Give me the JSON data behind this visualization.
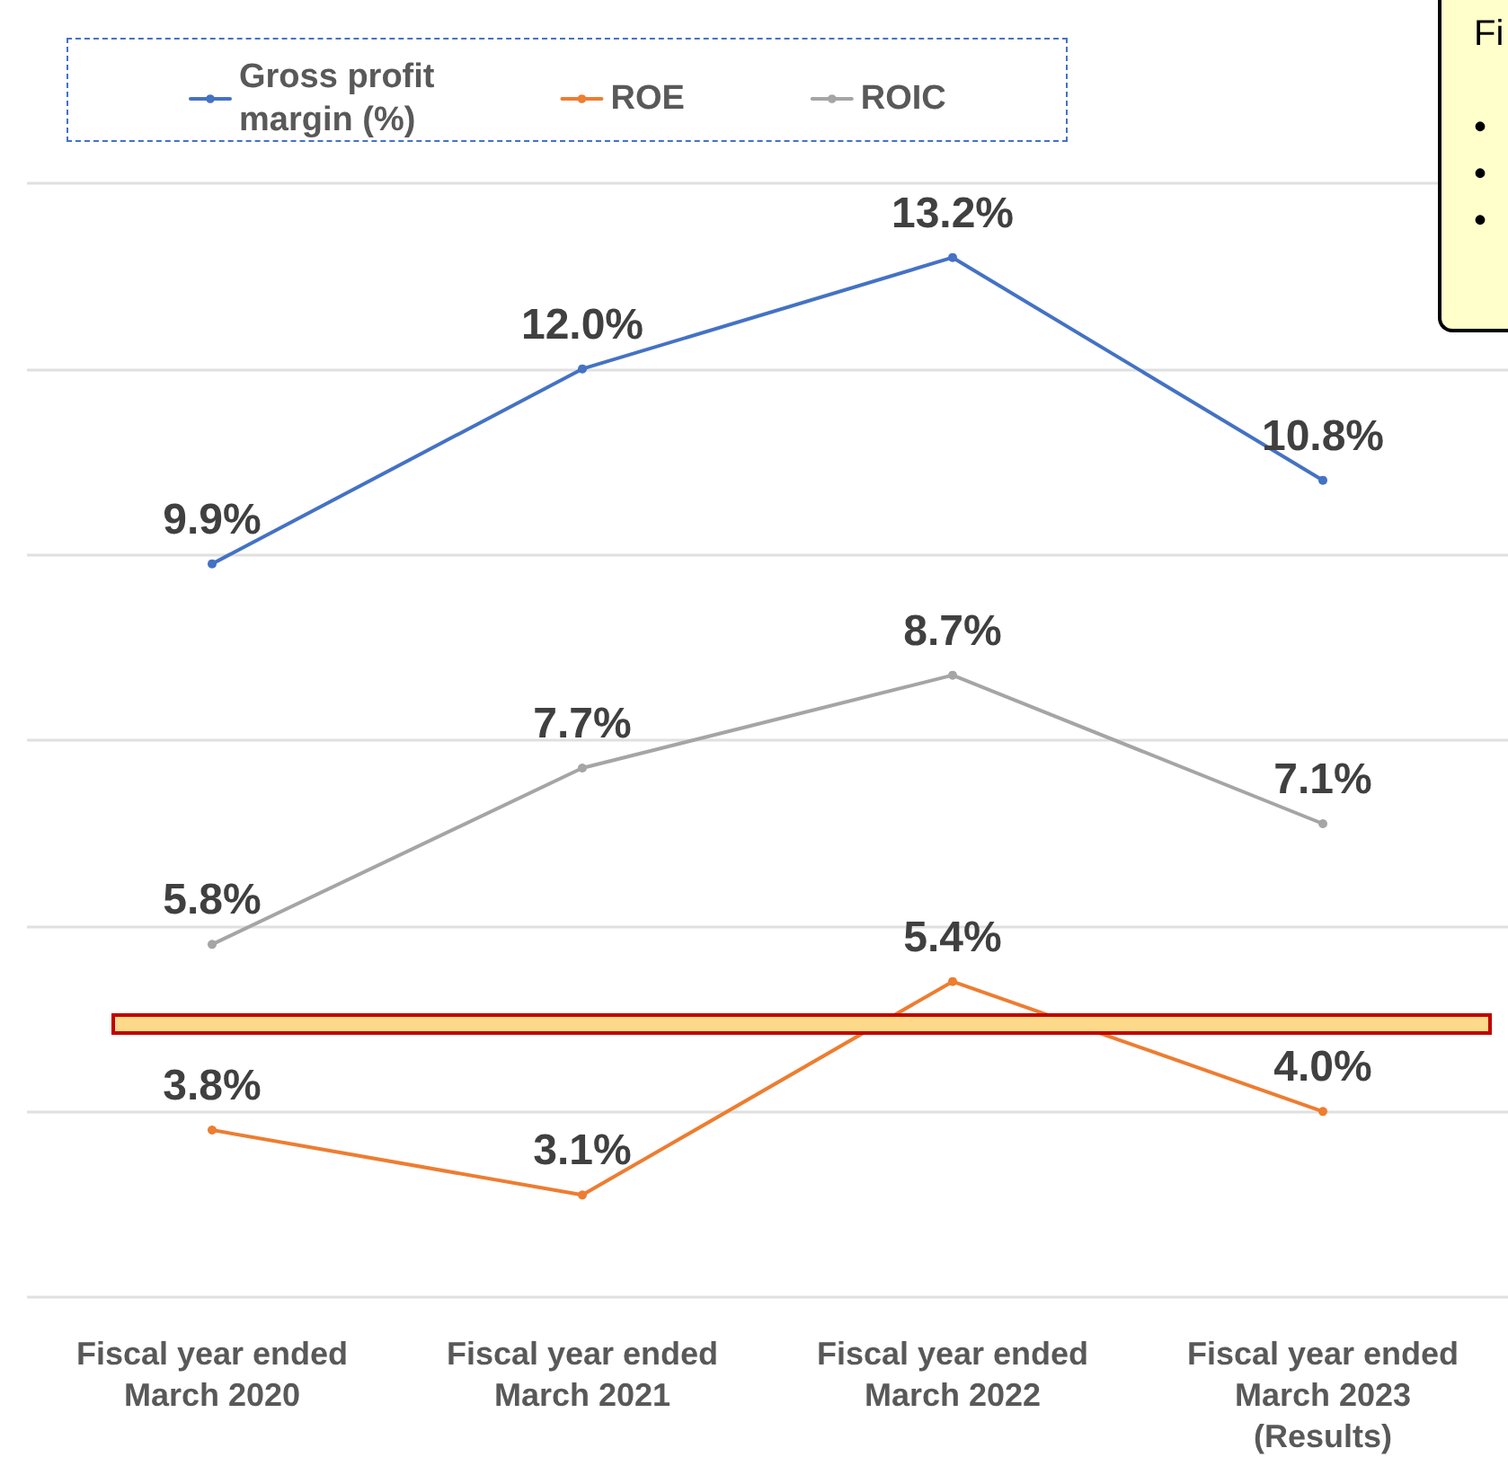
{
  "chart_data": {
    "type": "line",
    "categories": [
      "Fiscal year ended\nMarch 2020",
      "Fiscal year ended\nMarch 2021",
      "Fiscal year ended\nMarch 2022",
      "Fiscal year ended\nMarch 2023\n(Results)"
    ],
    "series": [
      {
        "name": "Gross profit\nmargin (%)",
        "color": "#4472c4",
        "values": [
          9.9,
          12.0,
          13.2,
          10.8
        ],
        "value_labels": [
          "9.9%",
          "12.0%",
          "13.2%",
          "10.8%"
        ]
      },
      {
        "name": "ROE",
        "color": "#ed7d31",
        "values": [
          3.8,
          3.1,
          5.4,
          4.0
        ],
        "value_labels": [
          "3.8%",
          "3.1%",
          "5.4%",
          "4.0%"
        ]
      },
      {
        "name": "ROIC",
        "color": "#a5a5a5",
        "values": [
          5.8,
          7.7,
          8.7,
          7.1
        ],
        "value_labels": [
          "5.8%",
          "7.7%",
          "8.7%",
          "7.1%"
        ]
      }
    ],
    "ylim": [
      2,
      14
    ],
    "yticks": [
      2,
      4,
      6,
      8,
      10,
      12,
      14
    ],
    "tick_labels": "x",
    "grid": "y",
    "legend": "top left",
    "marker": "circle",
    "line_style": "solid",
    "annotations": [
      "Fi\n\n•\n•\n•"
    ]
  }
}
